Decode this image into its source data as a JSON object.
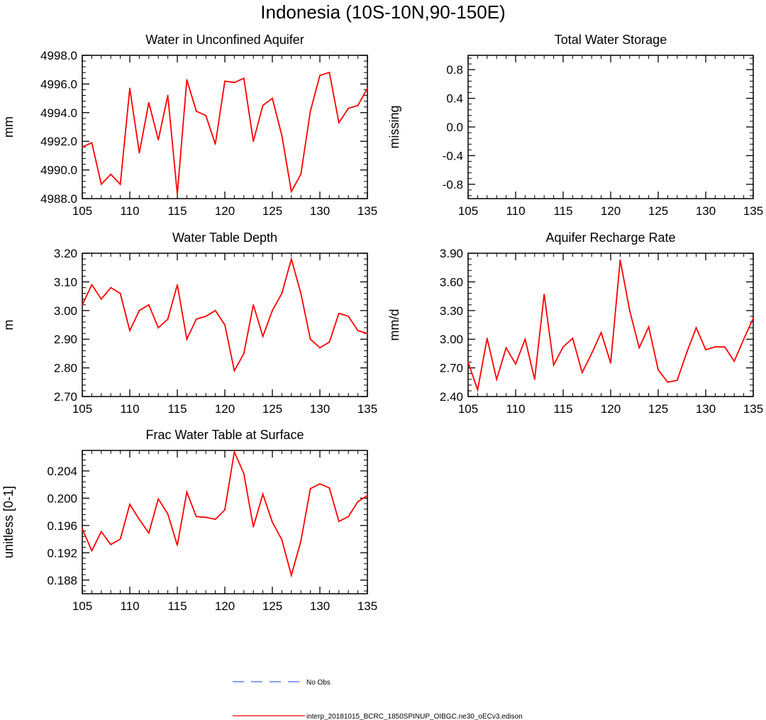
{
  "page_title": "Indonesia (10S-10N,90-150E)",
  "colors": {
    "model": "#ff0000",
    "obs": "#4466ee",
    "axis": "#000000"
  },
  "legend": {
    "obs_label": "No Obs",
    "model_label": "interp_20181015_BCRC_1850SPINUP_OIBGC.ne30_oECv3.edison"
  },
  "chart_data": [
    {
      "type": "line",
      "title": "Water in Unconfined Aquifer",
      "ylabel": "mm",
      "xlim": [
        105,
        135
      ],
      "ylim": [
        4988.0,
        4998.0
      ],
      "xticks": [
        105,
        110,
        115,
        120,
        125,
        130,
        135
      ],
      "yticks": [
        4988.0,
        4990.0,
        4992.0,
        4994.0,
        4996.0,
        4998.0
      ],
      "ytick_labels": [
        "4988.0",
        "4990.0",
        "4992.0",
        "4994.0",
        "4996.0",
        "4998.0"
      ],
      "series": [
        {
          "x": [
            105,
            106,
            107,
            108,
            109,
            110,
            111,
            112,
            113,
            114,
            115,
            116,
            117,
            118,
            119,
            120,
            121,
            122,
            123,
            124,
            125,
            126,
            127,
            128,
            129,
            130,
            131,
            132,
            133,
            134,
            135
          ],
          "values": [
            4991.6,
            4991.9,
            4989.0,
            4989.7,
            4989.0,
            4995.7,
            4991.2,
            4994.7,
            4992.1,
            4995.2,
            4988.3,
            4996.3,
            4994.1,
            4993.8,
            4991.8,
            4996.2,
            4996.1,
            4996.4,
            4992.0,
            4994.5,
            4995.0,
            4992.4,
            4988.5,
            4989.7,
            4994.1,
            4996.6,
            4996.8,
            4993.3,
            4994.3,
            4994.5,
            4995.7
          ]
        }
      ]
    },
    {
      "type": "line",
      "title": "Total Water Storage",
      "ylabel": "missing",
      "xlim": [
        105,
        135
      ],
      "ylim": [
        -1.0,
        1.0
      ],
      "xticks": [
        105,
        110,
        115,
        120,
        125,
        130,
        135
      ],
      "yticks": [
        -0.8,
        -0.4,
        0.0,
        0.4,
        0.8
      ],
      "ytick_labels": [
        "-0.8",
        "-0.4",
        "0.0",
        "0.4",
        "0.8"
      ],
      "series": []
    },
    {
      "type": "line",
      "title": "Water Table Depth",
      "ylabel": "m",
      "xlim": [
        105,
        135
      ],
      "ylim": [
        2.7,
        3.2
      ],
      "xticks": [
        105,
        110,
        115,
        120,
        125,
        130,
        135
      ],
      "yticks": [
        2.7,
        2.8,
        2.9,
        3.0,
        3.1,
        3.2
      ],
      "ytick_labels": [
        "2.70",
        "2.80",
        "2.90",
        "3.00",
        "3.10",
        "3.20"
      ],
      "series": [
        {
          "x": [
            105,
            106,
            107,
            108,
            109,
            110,
            111,
            112,
            113,
            114,
            115,
            116,
            117,
            118,
            119,
            120,
            121,
            122,
            123,
            124,
            125,
            126,
            127,
            128,
            129,
            130,
            131,
            132,
            133,
            134,
            135
          ],
          "values": [
            3.02,
            3.09,
            3.04,
            3.08,
            3.06,
            2.93,
            3.0,
            3.02,
            2.94,
            2.97,
            3.09,
            2.9,
            2.97,
            2.98,
            3.0,
            2.95,
            2.79,
            2.85,
            3.02,
            2.91,
            3.0,
            3.06,
            3.18,
            3.06,
            2.9,
            2.87,
            2.89,
            2.99,
            2.98,
            2.93,
            2.92
          ]
        }
      ]
    },
    {
      "type": "line",
      "title": "Aquifer Recharge Rate",
      "ylabel": "mm/d",
      "xlim": [
        105,
        135
      ],
      "ylim": [
        2.4,
        3.9
      ],
      "xticks": [
        105,
        110,
        115,
        120,
        125,
        130,
        135
      ],
      "yticks": [
        2.4,
        2.7,
        3.0,
        3.3,
        3.6,
        3.9
      ],
      "ytick_labels": [
        "2.40",
        "2.70",
        "3.00",
        "3.30",
        "3.60",
        "3.90"
      ],
      "series": [
        {
          "x": [
            105,
            106,
            107,
            108,
            109,
            110,
            111,
            112,
            113,
            114,
            115,
            116,
            117,
            118,
            119,
            120,
            121,
            122,
            123,
            124,
            125,
            126,
            127,
            128,
            129,
            130,
            131,
            132,
            133,
            134,
            135
          ],
          "values": [
            2.76,
            2.47,
            3.01,
            2.58,
            2.91,
            2.74,
            3.0,
            2.58,
            3.47,
            2.73,
            2.92,
            3.01,
            2.65,
            2.85,
            3.07,
            2.75,
            3.83,
            3.3,
            2.91,
            3.13,
            2.68,
            2.55,
            2.57,
            2.86,
            3.12,
            2.89,
            2.92,
            2.92,
            2.77,
            3.0,
            3.22
          ]
        }
      ]
    },
    {
      "type": "line",
      "title": "Frac Water Table at Surface",
      "ylabel": "unitless [0-1]",
      "xlim": [
        105,
        135
      ],
      "ylim": [
        0.186,
        0.207
      ],
      "xticks": [
        105,
        110,
        115,
        120,
        125,
        130,
        135
      ],
      "yticks": [
        0.188,
        0.192,
        0.196,
        0.2,
        0.204
      ],
      "ytick_labels": [
        "0.188",
        "0.192",
        "0.196",
        "0.200",
        "0.204"
      ],
      "series": [
        {
          "x": [
            105,
            106,
            107,
            108,
            109,
            110,
            111,
            112,
            113,
            114,
            115,
            116,
            117,
            118,
            119,
            120,
            121,
            122,
            123,
            124,
            125,
            126,
            127,
            128,
            129,
            130,
            131,
            132,
            133,
            134,
            135
          ],
          "values": [
            0.1955,
            0.1923,
            0.1951,
            0.1932,
            0.194,
            0.1991,
            0.1969,
            0.1949,
            0.1999,
            0.1977,
            0.1931,
            0.2009,
            0.1973,
            0.1972,
            0.1969,
            0.1983,
            0.2068,
            0.2036,
            0.1958,
            0.2006,
            0.1965,
            0.1939,
            0.1887,
            0.1937,
            0.2014,
            0.2021,
            0.2015,
            0.1966,
            0.1973,
            0.1995,
            0.2004
          ]
        }
      ]
    }
  ]
}
